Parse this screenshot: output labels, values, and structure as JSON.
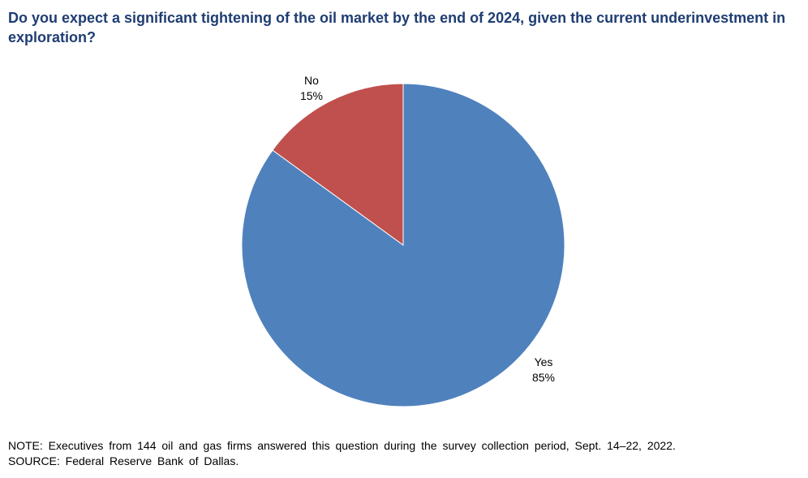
{
  "chart_data": {
    "type": "pie",
    "title": "Do you expect a significant tightening of the oil market by the end of 2024, given the current underinvestment in exploration?",
    "categories": [
      "Yes",
      "No"
    ],
    "values": [
      85,
      15
    ],
    "value_labels": [
      "85%",
      "15%"
    ],
    "colors": [
      "#4f81bd",
      "#c0504d"
    ],
    "start": "12 o'clock, clockwise",
    "legend": "none (labels beside slices)"
  },
  "footer": {
    "note": "NOTE: Executives from 144 oil and gas firms answered this question during the survey collection period, Sept. 14–22, 2022.",
    "source": "SOURCE: Federal Reserve Bank of Dallas."
  }
}
